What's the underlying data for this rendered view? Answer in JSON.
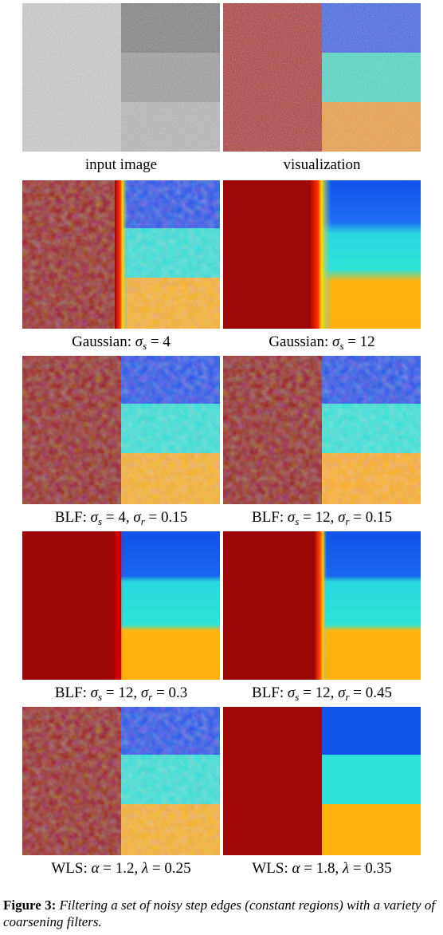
{
  "panels": [
    {
      "id": "input",
      "caption": "input image"
    },
    {
      "id": "vis",
      "caption": "visualization"
    },
    {
      "id": "g4",
      "caption": {
        "method": "Gaussian:",
        "sigma_s": "4"
      }
    },
    {
      "id": "g12",
      "caption": {
        "method": "Gaussian:",
        "sigma_s": "12"
      }
    },
    {
      "id": "blf1",
      "caption": {
        "method": "BLF:",
        "sigma_s": "4",
        "sigma_r": "0.15"
      }
    },
    {
      "id": "blf2",
      "caption": {
        "method": "BLF:",
        "sigma_s": "12",
        "sigma_r": "0.15"
      }
    },
    {
      "id": "blf3",
      "caption": {
        "method": "BLF:",
        "sigma_s": "12",
        "sigma_r": "0.3"
      }
    },
    {
      "id": "blf4",
      "caption": {
        "method": "BLF:",
        "sigma_s": "12",
        "sigma_r": "0.45"
      }
    },
    {
      "id": "wls1",
      "caption": {
        "method": "WLS:",
        "alpha": "1.2",
        "lambda": "0.25"
      }
    },
    {
      "id": "wls2",
      "caption": {
        "method": "WLS:",
        "alpha": "1.8",
        "lambda": "0.35"
      }
    }
  ],
  "figure_caption": {
    "label": "Figure 3:",
    "text": "Filtering a set of noisy step edges (constant regions) with a variety of coarsening filters."
  },
  "colors": {
    "dark_red": "#9c0000",
    "blue": "#1052e8",
    "cyan": "#27e6dc",
    "orange": "#ffb000",
    "gray_light": "#d0d0d0",
    "gray_dark": "#6e6e6e",
    "gray_mid": "#9c9c9c",
    "gray_bottom": "#b8b8b8"
  }
}
